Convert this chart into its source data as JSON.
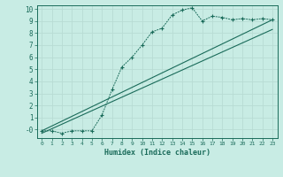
{
  "xlabel": "Humidex (Indice chaleur)",
  "bg_color": "#c8ece4",
  "grid_color": "#b8dcd4",
  "line_color": "#1a6b5a",
  "xlim": [
    -0.5,
    23.5
  ],
  "ylim": [
    -0.7,
    10.3
  ],
  "xticks": [
    0,
    1,
    2,
    3,
    4,
    5,
    6,
    7,
    8,
    9,
    10,
    11,
    12,
    13,
    14,
    15,
    16,
    17,
    18,
    19,
    20,
    21,
    22,
    23
  ],
  "yticks": [
    0,
    1,
    2,
    3,
    4,
    5,
    6,
    7,
    8,
    9,
    10
  ],
  "ytick_labels": [
    "0",
    "1",
    "2",
    "3",
    "4",
    "5",
    "6",
    "7",
    "8",
    "9",
    "10"
  ],
  "line1_x": [
    0,
    1,
    2,
    3,
    4,
    5,
    6,
    7,
    8,
    9,
    10,
    11,
    12,
    13,
    14,
    15,
    16,
    17,
    18,
    19,
    20,
    21,
    22,
    23
  ],
  "line1_y": [
    -0.1,
    -0.1,
    -0.3,
    -0.1,
    -0.1,
    -0.1,
    1.2,
    3.3,
    5.2,
    6.0,
    7.0,
    8.1,
    8.4,
    9.5,
    9.9,
    10.1,
    9.0,
    9.4,
    9.3,
    9.1,
    9.2,
    9.1,
    9.2,
    9.1
  ],
  "line2_x": [
    0,
    23
  ],
  "line2_y": [
    -0.1,
    9.1
  ],
  "line3_x": [
    0,
    23
  ],
  "line3_y": [
    -0.3,
    8.3
  ],
  "ylabel_neg0": "-0"
}
